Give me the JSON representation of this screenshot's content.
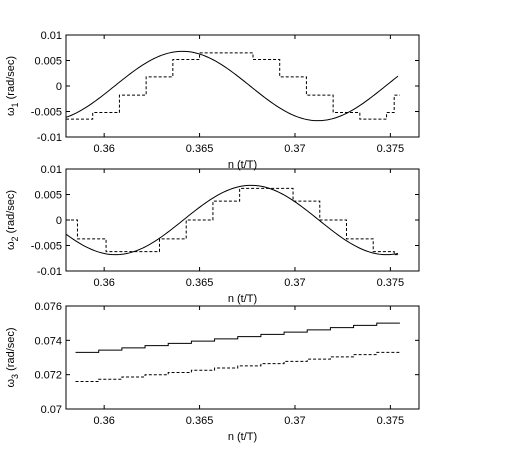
{
  "chart_data": [
    {
      "type": "line",
      "xlabel": "n (t/T)",
      "ylabel": "ω",
      "ylabel_sub": "1",
      "ylabel_unit": " (rad/sec)",
      "xlim": [
        0.358,
        0.3765
      ],
      "ylim": [
        -0.01,
        0.01
      ],
      "xticks": [
        0.36,
        0.365,
        0.37,
        0.375
      ],
      "xtick_labels": [
        "0.36",
        "0.365",
        "0.37",
        "0.375"
      ],
      "yticks": [
        -0.01,
        -0.005,
        0,
        0.005,
        0.01
      ],
      "ytick_labels": [
        "-0.01",
        "-0.005",
        "0",
        "0.005",
        "0.01"
      ],
      "series": [
        {
          "style": "solid",
          "kind": "sine",
          "x_range": [
            0.358,
            0.3754
          ],
          "amplitude": 0.0068,
          "peak_x": 0.3641,
          "half_period": 0.0071
        },
        {
          "style": "dashed",
          "kind": "step",
          "points": [
            [
              0.358,
              -0.0065
            ],
            [
              0.3594,
              -0.0052
            ],
            [
              0.3608,
              -0.0018
            ],
            [
              0.3622,
              0.0018
            ],
            [
              0.3636,
              0.0052
            ],
            [
              0.365,
              0.0065
            ],
            [
              0.3664,
              0.0065
            ],
            [
              0.3678,
              0.0052
            ],
            [
              0.3692,
              0.0018
            ],
            [
              0.3706,
              -0.0018
            ],
            [
              0.372,
              -0.0052
            ],
            [
              0.3734,
              -0.0065
            ],
            [
              0.3748,
              -0.0052
            ],
            [
              0.3752,
              -0.0018
            ]
          ]
        }
      ]
    },
    {
      "type": "line",
      "xlabel": "n (t/T)",
      "ylabel": "ω",
      "ylabel_sub": "2",
      "ylabel_unit": " (rad/sec)",
      "xlim": [
        0.358,
        0.3765
      ],
      "ylim": [
        -0.01,
        0.01
      ],
      "xticks": [
        0.36,
        0.365,
        0.37,
        0.375
      ],
      "xtick_labels": [
        "0.36",
        "0.365",
        "0.37",
        "0.375"
      ],
      "yticks": [
        -0.01,
        -0.005,
        0,
        0.005,
        0.01
      ],
      "ytick_labels": [
        "-0.01",
        "-0.005",
        "0",
        "0.005",
        "0.01"
      ],
      "series": [
        {
          "style": "solid",
          "kind": "sine",
          "x_range": [
            0.358,
            0.3754
          ],
          "amplitude": 0.0068,
          "peak_x": 0.3677,
          "half_period": 0.0071
        },
        {
          "style": "dashed",
          "kind": "step",
          "points": [
            [
              0.358,
              0.0
            ],
            [
              0.3586,
              -0.0037
            ],
            [
              0.3601,
              -0.0062
            ],
            [
              0.3615,
              -0.0062
            ],
            [
              0.3629,
              -0.0037
            ],
            [
              0.3643,
              0.0
            ],
            [
              0.3657,
              0.0037
            ],
            [
              0.3671,
              0.0062
            ],
            [
              0.3685,
              0.0062
            ],
            [
              0.3699,
              0.0037
            ],
            [
              0.3713,
              0.0
            ],
            [
              0.3727,
              -0.0037
            ],
            [
              0.3741,
              -0.0062
            ],
            [
              0.3752,
              -0.0068
            ]
          ]
        }
      ]
    },
    {
      "type": "line",
      "xlabel": "n (t/T)",
      "ylabel": "ω",
      "ylabel_sub": "3",
      "ylabel_unit": " (rad/sec)",
      "xlim": [
        0.358,
        0.3765
      ],
      "ylim": [
        0.07,
        0.076
      ],
      "xticks": [
        0.36,
        0.365,
        0.37,
        0.375
      ],
      "xtick_labels": [
        "0.36",
        "0.365",
        "0.37",
        "0.375"
      ],
      "yticks": [
        0.07,
        0.072,
        0.074,
        0.076
      ],
      "ytick_labels": [
        "0.07",
        "0.072",
        "0.074",
        "0.076"
      ],
      "series": [
        {
          "style": "solid",
          "kind": "ramp-step",
          "x_range": [
            0.3585,
            0.3755
          ],
          "y_start": 0.0733,
          "y_end": 0.075,
          "steps": 14
        },
        {
          "style": "dashed",
          "kind": "ramp-step",
          "x_range": [
            0.3585,
            0.3755
          ],
          "y_start": 0.0716,
          "y_end": 0.0733,
          "steps": 14
        }
      ]
    }
  ]
}
